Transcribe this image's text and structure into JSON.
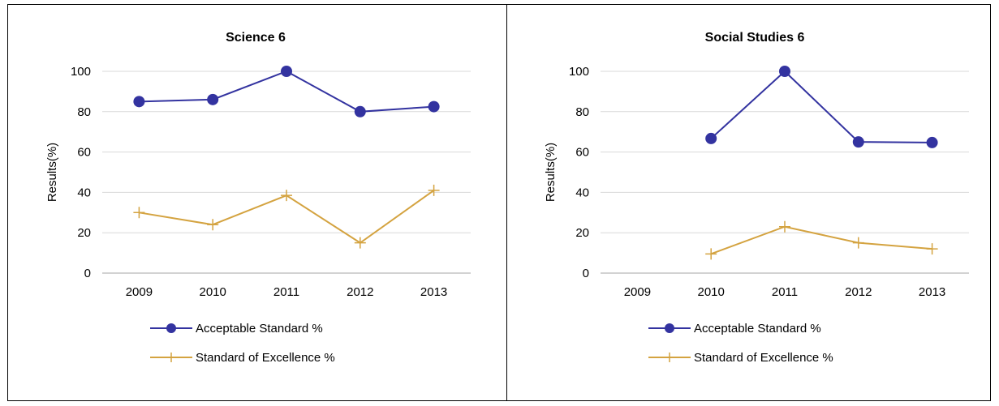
{
  "colors": {
    "acceptable": "#3333a0",
    "excellence": "#d4a340",
    "grid": "#d9d9d9"
  },
  "chart_data": [
    {
      "type": "line",
      "title": "Science 6",
      "ylabel": "Results(%)",
      "xlabel": "",
      "ylim": [
        0,
        100
      ],
      "yticks": [
        0,
        20,
        40,
        60,
        80,
        100
      ],
      "categories": [
        "2009",
        "2010",
        "2011",
        "2012",
        "2013"
      ],
      "grid": "horizontal",
      "legend": "bottom",
      "series": [
        {
          "name": "Acceptable Standard %",
          "marker": "circle",
          "values": [
            85,
            86,
            100,
            80,
            82.5
          ]
        },
        {
          "name": "Standard of Excellence %",
          "marker": "plus",
          "values": [
            30,
            24,
            38.5,
            15,
            41
          ]
        }
      ]
    },
    {
      "type": "line",
      "title": "Social Studies 6",
      "ylabel": "Results(%)",
      "xlabel": "",
      "ylim": [
        0,
        100
      ],
      "yticks": [
        0,
        20,
        40,
        60,
        80,
        100
      ],
      "categories": [
        "2009",
        "2010",
        "2011",
        "2012",
        "2013"
      ],
      "grid": "horizontal",
      "legend": "bottom",
      "series": [
        {
          "name": "Acceptable Standard %",
          "marker": "circle",
          "values": [
            null,
            66.7,
            100,
            65,
            64.7
          ]
        },
        {
          "name": "Standard of Excellence %",
          "marker": "plus",
          "values": [
            null,
            9.5,
            23,
            15,
            12
          ]
        }
      ]
    }
  ]
}
